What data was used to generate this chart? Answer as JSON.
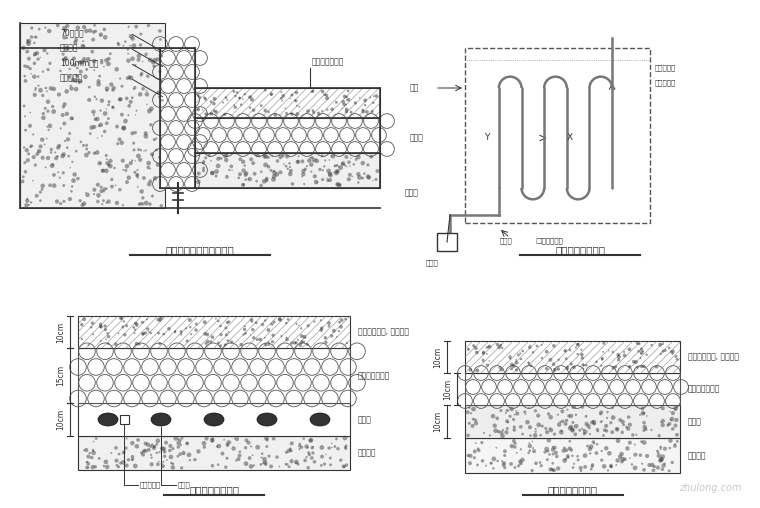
{
  "background": "#ffffff",
  "panel_titles": [
    "冷库墙身板与地坪接点图",
    "冷库地面电热防冻",
    "低温冷库地面大样",
    "中温冷库地面大样"
  ],
  "bottom_left_labels": [
    "细石混凝土面, 防腐处理",
    "地坪保温防潮层",
    "架空层",
    "基础地面"
  ],
  "bottom_right_labels": [
    "细骨料混凝土, 防腐处理",
    "地面保温防潮层",
    "架空层",
    "基础地面"
  ],
  "bottom_left_dims": [
    "10cm",
    "15cm",
    "10cm"
  ],
  "bottom_right_dims": [
    "10cm",
    "10cm",
    "10cm"
  ],
  "bottom_left_footnotes": [
    "温度传感器",
    "电热板"
  ],
  "top_left_labels": [
    "70厚地板",
    "聚氨酯板",
    "100mm管管",
    "溶石混凝材"
  ],
  "top_right_labels": [
    "常用电热丝",
    "备用电热丝"
  ],
  "top_right_side_labels": [
    "暗盒",
    "冷库内",
    "冷机板"
  ],
  "top_right_bottom_labels": [
    "入口处",
    "控制箱",
    "□温控传感器"
  ],
  "watermark": "zhulong.com"
}
